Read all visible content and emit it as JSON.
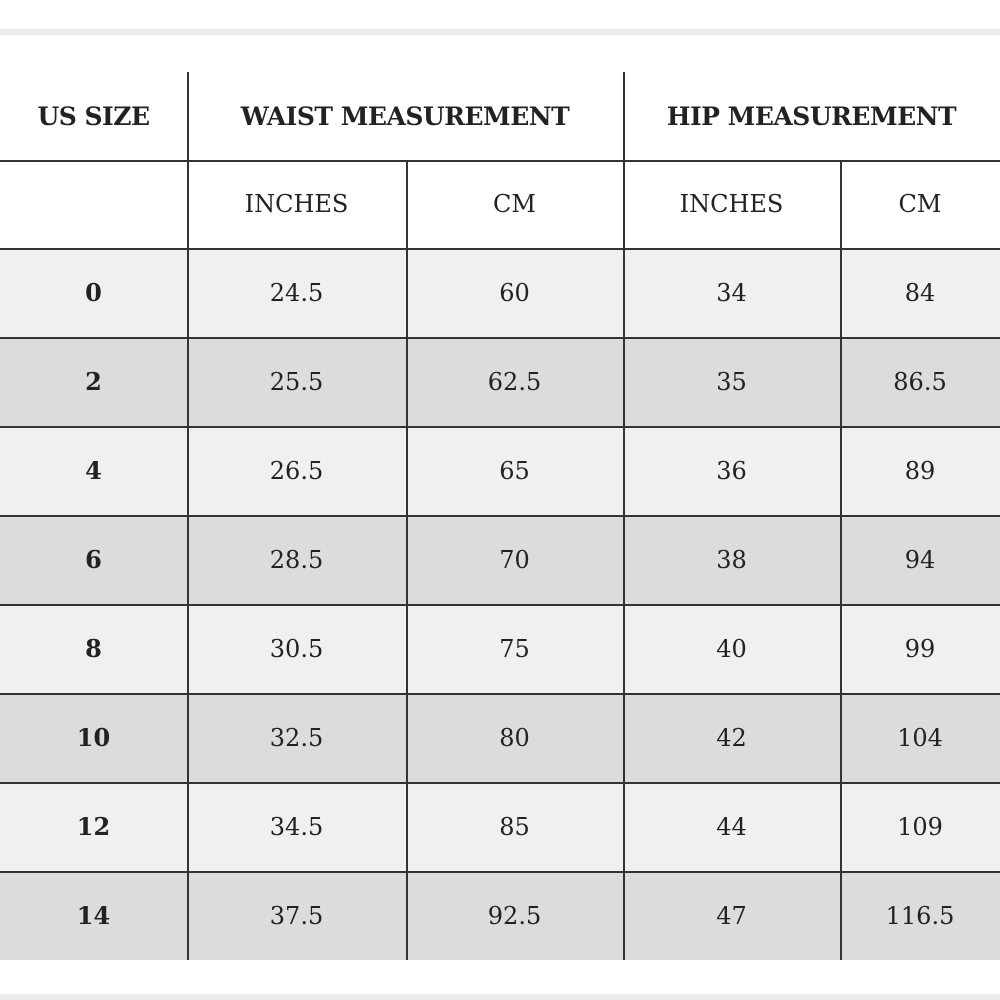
{
  "table": {
    "header": [
      "US SIZE",
      "WAIST MEASUREMENT",
      "HIP MEASUREMENT"
    ],
    "subheader": [
      "INCHES",
      "CM",
      "INCHES",
      "CM"
    ],
    "rows": [
      [
        0,
        24.5,
        60,
        34,
        84
      ],
      [
        2,
        25.5,
        62.5,
        35,
        86.5
      ],
      [
        4,
        26.5,
        65,
        36,
        89
      ],
      [
        6,
        28.5,
        70,
        38,
        94
      ],
      [
        8,
        30.5,
        75,
        40,
        99
      ],
      [
        10,
        32.5,
        80,
        42,
        104
      ],
      [
        12,
        34.5,
        85,
        44,
        109
      ],
      [
        14,
        37.5,
        92.5,
        47,
        116.5
      ]
    ]
  }
}
